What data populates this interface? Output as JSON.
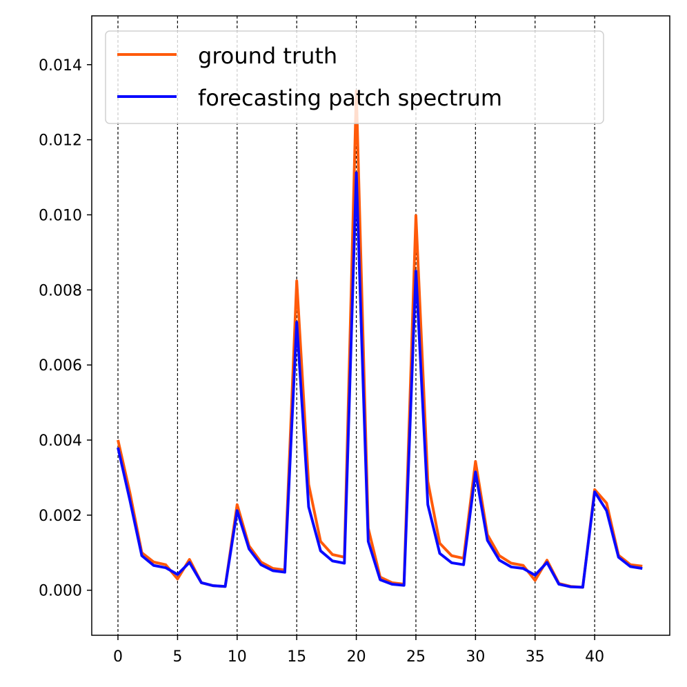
{
  "chart_data": {
    "type": "line",
    "title": "",
    "xlabel": "",
    "ylabel": "",
    "xlim": [
      -2.2,
      46.3
    ],
    "ylim": [
      -0.0012,
      0.0153
    ],
    "xticks": [
      0,
      5,
      10,
      15,
      20,
      25,
      30,
      35,
      40
    ],
    "xtick_labels": [
      "0",
      "5",
      "10",
      "15",
      "20",
      "25",
      "30",
      "35",
      "40"
    ],
    "yticks": [
      0.0,
      0.002,
      0.004,
      0.006,
      0.008,
      0.01,
      0.012,
      0.014
    ],
    "ytick_labels": [
      "0.000",
      "0.002",
      "0.004",
      "0.006",
      "0.008",
      "0.010",
      "0.012",
      "0.014"
    ],
    "vlines": [
      0,
      5,
      10,
      15,
      20,
      25,
      30,
      35,
      40
    ],
    "legend_position": "upper-left",
    "x": [
      0,
      1,
      2,
      3,
      4,
      5,
      6,
      7,
      8,
      9,
      10,
      11,
      12,
      13,
      14,
      15,
      16,
      17,
      18,
      19,
      20,
      21,
      22,
      23,
      24,
      25,
      26,
      27,
      28,
      29,
      30,
      31,
      32,
      33,
      34,
      35,
      36,
      37,
      38,
      39,
      40,
      41,
      42,
      43,
      44
    ],
    "series": [
      {
        "name": "ground truth",
        "color": "#ff5a0a",
        "values": [
          0.004,
          0.0026,
          0.001,
          0.00075,
          0.00068,
          0.0003,
          0.00082,
          0.0002,
          0.00012,
          0.0001,
          0.00228,
          0.00118,
          0.00075,
          0.00058,
          0.00054,
          0.00824,
          0.00282,
          0.0013,
          0.00095,
          0.00088,
          0.0133,
          0.00165,
          0.00035,
          0.0002,
          0.00016,
          0.00998,
          0.0029,
          0.00125,
          0.00092,
          0.00085,
          0.00343,
          0.00148,
          0.00092,
          0.00072,
          0.00066,
          0.00026,
          0.0008,
          0.00018,
          0.0001,
          8e-05,
          0.00268,
          0.00232,
          0.00093,
          0.00068,
          0.00064
        ]
      },
      {
        "name": "forecasting patch spectrum",
        "color": "#0a0aff",
        "values": [
          0.0038,
          0.0024,
          0.00092,
          0.00066,
          0.0006,
          0.00042,
          0.00074,
          0.0002,
          0.00012,
          0.0001,
          0.00212,
          0.0011,
          0.00068,
          0.00052,
          0.00048,
          0.00714,
          0.00222,
          0.00105,
          0.00078,
          0.00072,
          0.01112,
          0.0013,
          0.00028,
          0.00016,
          0.00013,
          0.0085,
          0.00228,
          0.00098,
          0.00073,
          0.00068,
          0.00315,
          0.00133,
          0.0008,
          0.00062,
          0.00058,
          0.0004,
          0.00074,
          0.00016,
          9e-05,
          8e-05,
          0.00262,
          0.00212,
          0.00088,
          0.00063,
          0.00058
        ]
      }
    ]
  }
}
